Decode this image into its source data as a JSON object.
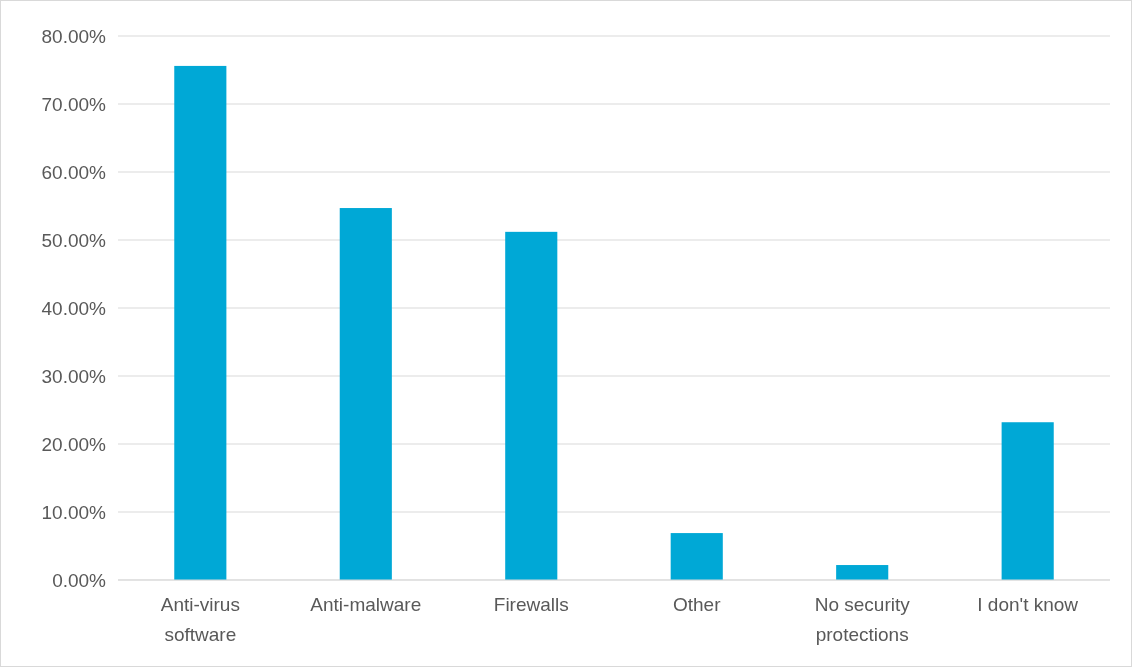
{
  "chart_data": {
    "type": "bar",
    "categories": [
      "Anti-virus software",
      "Anti-malware",
      "Firewalls",
      "Other",
      "No security protections",
      "I don't know"
    ],
    "values": [
      75.6,
      54.7,
      51.2,
      6.9,
      2.2,
      23.2
    ],
    "color": "#00a8d6",
    "ylim": [
      0,
      80
    ],
    "yticks": [
      {
        "value": 0,
        "label": "0.00%"
      },
      {
        "value": 10,
        "label": "10.00%"
      },
      {
        "value": 20,
        "label": "20.00%"
      },
      {
        "value": 30,
        "label": "30.00%"
      },
      {
        "value": 40,
        "label": "40.00%"
      },
      {
        "value": 50,
        "label": "50.00%"
      },
      {
        "value": 60,
        "label": "60.00%"
      },
      {
        "value": 70,
        "label": "70.00%"
      },
      {
        "value": 80,
        "label": "80.00%"
      }
    ],
    "grid": "y"
  }
}
